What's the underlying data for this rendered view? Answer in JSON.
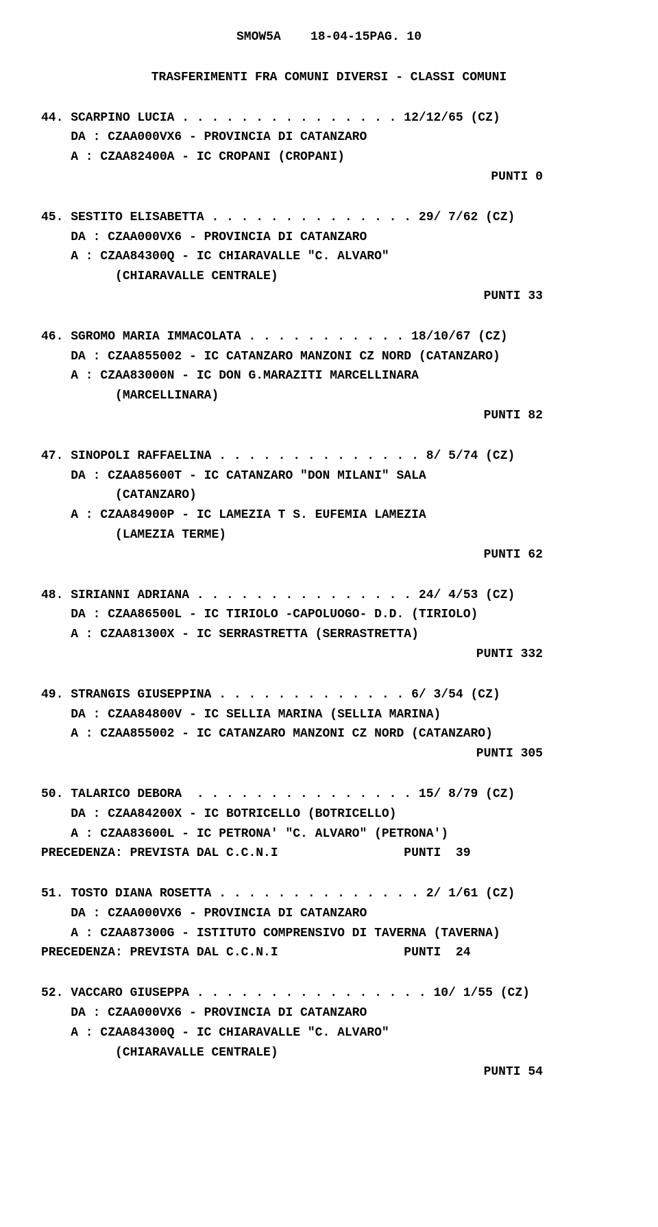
{
  "header": {
    "left": "SMOW5A",
    "right": "18-04-15PAG. 10"
  },
  "section_title": "TRASFERIMENTI FRA COMUNI DIVERSI - CLASSI COMUNI",
  "entries": [
    {
      "num": "44.",
      "name": "SCARPINO LUCIA",
      "dots": " . . . . . . . . . . . . . . . ",
      "date": "12/12/65 (CZ)",
      "da": "DA : CZAA000VX6 - PROVINCIA DI CATANZARO",
      "a": "A : CZAA82400A - IC CROPANI (CROPANI)",
      "a2": "",
      "punti": "PUNTI   0",
      "precedenza": ""
    },
    {
      "num": "45.",
      "name": "SESTITO ELISABETTA",
      "dots": " . . . . . . . . . . . . . . ",
      "date": "29/ 7/62 (CZ)",
      "da": "DA : CZAA000VX6 - PROVINCIA DI CATANZARO",
      "a": "A : CZAA84300Q - IC CHIARAVALLE \"C. ALVARO\"",
      "a2": "(CHIARAVALLE CENTRALE)",
      "punti": "PUNTI  33",
      "precedenza": ""
    },
    {
      "num": "46.",
      "name": "SGROMO MARIA IMMACOLATA",
      "dots": " . . . . . . . . . . . ",
      "date": "18/10/67 (CZ)",
      "da": "DA : CZAA855002 - IC CATANZARO MANZONI CZ NORD (CATANZARO)",
      "a": "A : CZAA83000N - IC DON G.MARAZITI MARCELLINARA",
      "a2": "(MARCELLINARA)",
      "punti": "PUNTI  82",
      "precedenza": ""
    },
    {
      "num": "47.",
      "name": "SINOPOLI RAFFAELINA",
      "dots": " . . . . . . . . . . . . . . ",
      "date": "8/ 5/74 (CZ)",
      "da": "DA : CZAA85600T - IC CATANZARO \"DON MILANI\" SALA",
      "da2": "(CATANZARO)",
      "a": "A : CZAA84900P - IC LAMEZIA T S. EUFEMIA LAMEZIA",
      "a2": "(LAMEZIA TERME)",
      "punti": "PUNTI  62",
      "precedenza": ""
    },
    {
      "num": "48.",
      "name": "SIRIANNI ADRIANA",
      "dots": " . . . . . . . . . . . . . . . ",
      "date": "24/ 4/53 (CZ)",
      "da": "DA : CZAA86500L - IC TIRIOLO -CAPOLUOGO- D.D. (TIRIOLO)",
      "a": "A : CZAA81300X - IC SERRASTRETTA (SERRASTRETTA)",
      "a2": "",
      "punti": "PUNTI 332",
      "precedenza": ""
    },
    {
      "num": "49.",
      "name": "STRANGIS GIUSEPPINA",
      "dots": " . . . . . . . . . . . . . ",
      "date": "6/ 3/54 (CZ)",
      "da": "DA : CZAA84800V - IC SELLIA MARINA (SELLIA MARINA)",
      "a": "A : CZAA855002 - IC CATANZARO MANZONI CZ NORD (CATANZARO)",
      "a2": "",
      "punti": "PUNTI 305",
      "precedenza": ""
    },
    {
      "num": "50.",
      "name": "TALARICO DEBORA ",
      "dots": " . . . . . . . . . . . . . . . ",
      "date": "15/ 8/79 (CZ)",
      "da": "DA : CZAA84200X - IC BOTRICELLO (BOTRICELLO)",
      "a": "A : CZAA83600L - IC PETRONA' \"C. ALVARO\" (PETRONA')",
      "a2": "",
      "punti": "PUNTI  39",
      "precedenza": "PRECEDENZA: PREVISTA DAL C.C.N.I"
    },
    {
      "num": "51.",
      "name": "TOSTO DIANA ROSETTA",
      "dots": " . . . . . . . . . . . . . . ",
      "date": "2/ 1/61 (CZ)",
      "da": "DA : CZAA000VX6 - PROVINCIA DI CATANZARO",
      "a": "A : CZAA87300G - ISTITUTO COMPRENSIVO DI TAVERNA (TAVERNA)",
      "a2": "",
      "punti": "PUNTI  24",
      "precedenza": "PRECEDENZA: PREVISTA DAL C.C.N.I"
    },
    {
      "num": "52.",
      "name": "VACCARO GIUSEPPA",
      "dots": " . . . . . . . . . . . . . . . . ",
      "date": "10/ 1/55 (CZ)",
      "da": "DA : CZAA000VX6 - PROVINCIA DI CATANZARO",
      "a": "A : CZAA84300Q - IC CHIARAVALLE \"C. ALVARO\"",
      "a2": "(CHIARAVALLE CENTRALE)",
      "punti": "PUNTI  54",
      "precedenza": ""
    }
  ]
}
